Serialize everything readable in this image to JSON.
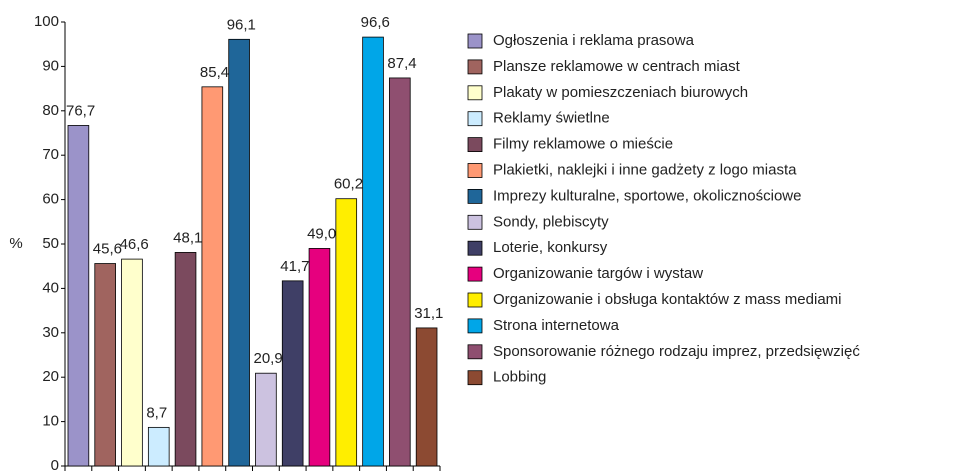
{
  "chart_data": {
    "type": "bar",
    "ylabel": "%",
    "ylim": [
      0,
      100
    ],
    "yticks": [
      0,
      10,
      20,
      30,
      40,
      50,
      60,
      70,
      80,
      90,
      100
    ],
    "grid": false,
    "legend": "right",
    "series": [
      {
        "name": "Ogłoszenia i reklama prasowa",
        "color": "#9b93c9",
        "values": [
          76.7
        ],
        "value_labels": [
          "76,7"
        ]
      },
      {
        "name": "Plansze reklamowe w centrach miast",
        "color": "#a0645f",
        "values": [
          45.6
        ],
        "value_labels": [
          "45,6"
        ]
      },
      {
        "name": "Plakaty w pomieszczeniach biurowych",
        "color": "#ffffcc",
        "values": [
          46.6
        ],
        "value_labels": [
          "46,6"
        ]
      },
      {
        "name": "Reklamy świetlne",
        "color": "#ccecff",
        "values": [
          8.7
        ],
        "value_labels": [
          "8,7"
        ]
      },
      {
        "name": "Filmy reklamowe o mieście",
        "color": "#7b4a5e",
        "values": [
          48.1
        ],
        "value_labels": [
          "48,1"
        ]
      },
      {
        "name": "Plakietki, naklejki i inne gadżety z logo miasta",
        "color": "#ff9973",
        "values": [
          85.4
        ],
        "value_labels": [
          "85,4"
        ]
      },
      {
        "name": "Imprezy kulturalne, sportowe, okolicznościowe",
        "color": "#1f6699",
        "values": [
          96.1
        ],
        "value_labels": [
          "96,1"
        ]
      },
      {
        "name": "Sondy, plebiscyty",
        "color": "#ccc2e0",
        "values": [
          20.9
        ],
        "value_labels": [
          "20,9"
        ]
      },
      {
        "name": "Loterie, konkursy",
        "color": "#3f3f66",
        "values": [
          41.7
        ],
        "value_labels": [
          "41,7"
        ]
      },
      {
        "name": "Organizowanie targów i wystaw",
        "color": "#e6007e",
        "values": [
          49.0
        ],
        "value_labels": [
          "49,0"
        ]
      },
      {
        "name": "Organizowanie i obsługa kontaktów z mass mediami",
        "color": "#ffee00",
        "values": [
          60.2
        ],
        "value_labels": [
          "60,2"
        ]
      },
      {
        "name": "Strona internetowa",
        "color": "#00a6e8",
        "values": [
          96.6
        ],
        "value_labels": [
          "96,6"
        ]
      },
      {
        "name": "Sponsorowanie różnego rodzaju imprez, przedsięwzięć",
        "color": "#8f4f70",
        "values": [
          87.4
        ],
        "value_labels": [
          "87,4"
        ]
      },
      {
        "name": "Lobbing",
        "color": "#8c4a32",
        "values": [
          31.1
        ],
        "value_labels": [
          "31,1"
        ]
      }
    ]
  }
}
